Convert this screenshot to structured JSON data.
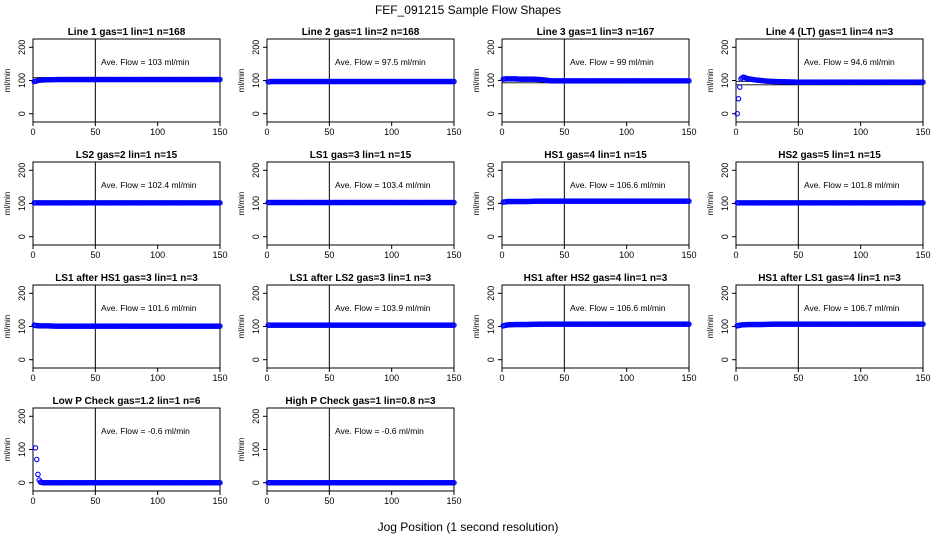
{
  "figure": {
    "title": "FEF_091215  Sample Flow Shapes",
    "xlabel": "Jog Position (1 second resolution)"
  },
  "chart_data": [
    {
      "type": "scatter",
      "title": "Line 1 gas=1 lin=1 n=168",
      "ylabel": "ml/min",
      "annotation": "Ave. Flow =  103  ml/min",
      "xlim": [
        0,
        150
      ],
      "ylim": [
        -25,
        225
      ],
      "xticks": [
        0,
        50,
        100,
        150
      ],
      "yticks": [
        0,
        100,
        200
      ],
      "vline_x": 50,
      "hlines": [
        97,
        109
      ],
      "series": [
        {
          "color": "#0000ff",
          "x": [
            1,
            2,
            3,
            4,
            5,
            10,
            20,
            30,
            40,
            50,
            60,
            70,
            80,
            90,
            100,
            110,
            120,
            130,
            140,
            150
          ],
          "y": [
            97,
            98,
            99,
            100,
            101,
            102,
            103,
            103,
            103,
            103,
            103,
            103,
            103,
            103,
            103,
            103,
            103,
            103,
            103,
            103
          ]
        }
      ]
    },
    {
      "type": "scatter",
      "title": "Line 2 gas=1 lin=2 n=168",
      "ylabel": "ml/min",
      "annotation": "Ave. Flow =  97.5  ml/min",
      "xlim": [
        0,
        150
      ],
      "ylim": [
        -25,
        225
      ],
      "xticks": [
        0,
        50,
        100,
        150
      ],
      "yticks": [
        0,
        100,
        200
      ],
      "vline_x": 50,
      "hlines": [],
      "series": [
        {
          "color": "#0000ff",
          "x": [
            1,
            2,
            3,
            5,
            10,
            20,
            30,
            40,
            50,
            60,
            70,
            80,
            90,
            100,
            110,
            120,
            130,
            140,
            150
          ],
          "y": [
            96,
            96,
            97,
            97,
            97,
            97,
            97,
            97,
            97,
            97,
            97,
            97,
            97,
            97,
            97,
            97,
            97,
            97,
            97
          ]
        }
      ]
    },
    {
      "type": "scatter",
      "title": "Line 3 gas=1 lin=3 n=167",
      "ylabel": "ml/min",
      "annotation": "Ave. Flow =  99  ml/min",
      "xlim": [
        0,
        150
      ],
      "ylim": [
        -25,
        225
      ],
      "xticks": [
        0,
        50,
        100,
        150
      ],
      "yticks": [
        0,
        100,
        200
      ],
      "vline_x": 50,
      "hlines": [
        93,
        105
      ],
      "series": [
        {
          "color": "#0000ff",
          "x": [
            1,
            3,
            5,
            10,
            15,
            20,
            25,
            30,
            40,
            50,
            60,
            70,
            80,
            90,
            100,
            110,
            120,
            130,
            140,
            150
          ],
          "y": [
            104,
            105,
            105,
            105,
            104,
            104,
            104,
            103,
            99,
            99,
            99,
            99,
            99,
            99,
            99,
            99,
            99,
            99,
            99,
            99
          ]
        }
      ]
    },
    {
      "type": "scatter",
      "title": "Line 4 (LT) gas=1 lin=4 n=3",
      "ylabel": "ml/min",
      "annotation": "Ave. Flow =  94.6  ml/min",
      "xlim": [
        0,
        150
      ],
      "ylim": [
        -25,
        225
      ],
      "xticks": [
        0,
        50,
        100,
        150
      ],
      "yticks": [
        0,
        100,
        200
      ],
      "vline_x": 50,
      "hlines": [
        87,
        97
      ],
      "series": [
        {
          "color": "#0000ff",
          "x": [
            1,
            2,
            3,
            4,
            5,
            6,
            7,
            8,
            10,
            12,
            15,
            20,
            25,
            30,
            40,
            50,
            60,
            70,
            80,
            90,
            100,
            110,
            120,
            130,
            140,
            150
          ],
          "y": [
            0,
            45,
            80,
            105,
            108,
            110,
            109,
            107,
            105,
            104,
            102,
            100,
            98,
            97,
            96,
            95,
            95,
            95,
            95,
            95,
            95,
            95,
            95,
            95,
            95,
            95
          ]
        }
      ]
    },
    {
      "type": "scatter",
      "title": "LS2 gas=2 lin=1 n=15",
      "ylabel": "ml/min",
      "annotation": "Ave. Flow =  102.4  ml/min",
      "xlim": [
        0,
        150
      ],
      "ylim": [
        -25,
        225
      ],
      "xticks": [
        0,
        50,
        100,
        150
      ],
      "yticks": [
        0,
        100,
        200
      ],
      "vline_x": 50,
      "hlines": [
        96,
        108
      ],
      "series": [
        {
          "color": "#0000ff",
          "x": [
            1,
            2,
            3,
            5,
            10,
            20,
            30,
            40,
            50,
            60,
            70,
            80,
            90,
            100,
            110,
            120,
            130,
            140,
            150
          ],
          "y": [
            102,
            102,
            102,
            102,
            102,
            102,
            102,
            102,
            102,
            102,
            102,
            102,
            102,
            102,
            102,
            102,
            102,
            102,
            102
          ]
        }
      ]
    },
    {
      "type": "scatter",
      "title": "LS1 gas=3 lin=1 n=15",
      "ylabel": "ml/min",
      "annotation": "Ave. Flow =  103.4  ml/min",
      "xlim": [
        0,
        150
      ],
      "ylim": [
        -25,
        225
      ],
      "xticks": [
        0,
        50,
        100,
        150
      ],
      "yticks": [
        0,
        100,
        200
      ],
      "vline_x": 50,
      "hlines": [],
      "series": [
        {
          "color": "#0000ff",
          "x": [
            1,
            2,
            3,
            5,
            10,
            20,
            30,
            40,
            50,
            60,
            70,
            80,
            90,
            100,
            110,
            120,
            130,
            140,
            150
          ],
          "y": [
            103,
            103,
            103,
            103,
            103,
            103,
            103,
            103,
            103,
            103,
            103,
            103,
            103,
            103,
            103,
            103,
            103,
            103,
            103
          ]
        }
      ]
    },
    {
      "type": "scatter",
      "title": "HS1 gas=4 lin=1 n=15",
      "ylabel": "ml/min",
      "annotation": "Ave. Flow =  106.6  ml/min",
      "xlim": [
        0,
        150
      ],
      "ylim": [
        -25,
        225
      ],
      "xticks": [
        0,
        50,
        100,
        150
      ],
      "yticks": [
        0,
        100,
        200
      ],
      "vline_x": 50,
      "hlines": [],
      "series": [
        {
          "color": "#0000ff",
          "x": [
            1,
            2,
            3,
            5,
            10,
            20,
            30,
            40,
            50,
            60,
            70,
            80,
            90,
            100,
            110,
            120,
            130,
            140,
            150
          ],
          "y": [
            104,
            105,
            105,
            106,
            106,
            106,
            107,
            107,
            107,
            107,
            107,
            107,
            107,
            107,
            107,
            107,
            107,
            107,
            107
          ]
        }
      ]
    },
    {
      "type": "scatter",
      "title": "HS2 gas=5 lin=1 n=15",
      "ylabel": "ml/min",
      "annotation": "Ave. Flow =  101.8  ml/min",
      "xlim": [
        0,
        150
      ],
      "ylim": [
        -25,
        225
      ],
      "xticks": [
        0,
        50,
        100,
        150
      ],
      "yticks": [
        0,
        100,
        200
      ],
      "vline_x": 50,
      "hlines": [],
      "series": [
        {
          "color": "#0000ff",
          "x": [
            1,
            2,
            3,
            5,
            10,
            20,
            30,
            40,
            50,
            60,
            70,
            80,
            90,
            100,
            110,
            120,
            130,
            140,
            150
          ],
          "y": [
            102,
            102,
            102,
            102,
            102,
            102,
            102,
            102,
            102,
            102,
            102,
            102,
            102,
            102,
            102,
            102,
            102,
            102,
            102
          ]
        }
      ]
    },
    {
      "type": "scatter",
      "title": "LS1 after HS1 gas=3 lin=1 n=3",
      "ylabel": "ml/min",
      "annotation": "Ave. Flow =  101.6  ml/min",
      "xlim": [
        0,
        150
      ],
      "ylim": [
        -25,
        225
      ],
      "xticks": [
        0,
        50,
        100,
        150
      ],
      "yticks": [
        0,
        100,
        200
      ],
      "vline_x": 50,
      "hlines": [],
      "series": [
        {
          "color": "#0000ff",
          "x": [
            1,
            2,
            3,
            5,
            10,
            20,
            30,
            40,
            50,
            60,
            70,
            80,
            90,
            100,
            110,
            120,
            130,
            140,
            150
          ],
          "y": [
            104,
            103,
            103,
            102,
            102,
            101,
            101,
            101,
            101,
            101,
            101,
            101,
            101,
            101,
            101,
            101,
            101,
            101,
            101
          ]
        }
      ]
    },
    {
      "type": "scatter",
      "title": "LS1 after LS2 gas=3 lin=1 n=3",
      "ylabel": "ml/min",
      "annotation": "Ave. Flow =  103.9  ml/min",
      "xlim": [
        0,
        150
      ],
      "ylim": [
        -25,
        225
      ],
      "xticks": [
        0,
        50,
        100,
        150
      ],
      "yticks": [
        0,
        100,
        200
      ],
      "vline_x": 50,
      "hlines": [],
      "series": [
        {
          "color": "#0000ff",
          "x": [
            1,
            2,
            3,
            5,
            10,
            20,
            30,
            40,
            50,
            60,
            70,
            80,
            90,
            100,
            110,
            120,
            130,
            140,
            150
          ],
          "y": [
            104,
            104,
            104,
            104,
            104,
            104,
            104,
            104,
            104,
            104,
            104,
            104,
            104,
            104,
            104,
            104,
            104,
            104,
            104
          ]
        }
      ]
    },
    {
      "type": "scatter",
      "title": "HS1 after HS2 gas=4 lin=1 n=3",
      "ylabel": "ml/min",
      "annotation": "Ave. Flow =  106.6  ml/min",
      "xlim": [
        0,
        150
      ],
      "ylim": [
        -25,
        225
      ],
      "xticks": [
        0,
        50,
        100,
        150
      ],
      "yticks": [
        0,
        100,
        200
      ],
      "vline_x": 50,
      "hlines": [],
      "series": [
        {
          "color": "#0000ff",
          "x": [
            1,
            2,
            3,
            5,
            10,
            20,
            30,
            40,
            50,
            60,
            70,
            80,
            90,
            100,
            110,
            120,
            130,
            140,
            150
          ],
          "y": [
            102,
            103,
            104,
            105,
            106,
            106,
            107,
            107,
            107,
            107,
            107,
            107,
            107,
            107,
            107,
            107,
            107,
            107,
            107
          ]
        }
      ]
    },
    {
      "type": "scatter",
      "title": "HS1 after LS1 gas=4 lin=1 n=3",
      "ylabel": "ml/min",
      "annotation": "Ave. Flow =  106.7  ml/min",
      "xlim": [
        0,
        150
      ],
      "ylim": [
        -25,
        225
      ],
      "xticks": [
        0,
        50,
        100,
        150
      ],
      "yticks": [
        0,
        100,
        200
      ],
      "vline_x": 50,
      "hlines": [],
      "series": [
        {
          "color": "#0000ff",
          "x": [
            1,
            2,
            3,
            5,
            10,
            20,
            30,
            40,
            50,
            60,
            70,
            80,
            90,
            100,
            110,
            120,
            130,
            140,
            150
          ],
          "y": [
            102,
            103,
            104,
            105,
            106,
            106,
            107,
            107,
            107,
            107,
            107,
            107,
            107,
            107,
            107,
            107,
            107,
            107,
            107
          ]
        }
      ]
    },
    {
      "type": "scatter",
      "title": "Low P Check gas=1.2 lin=1 n=6",
      "ylabel": "ml/min",
      "annotation": "Ave. Flow =  -0.6  ml/min",
      "xlim": [
        0,
        150
      ],
      "ylim": [
        -25,
        225
      ],
      "xticks": [
        0,
        50,
        100,
        150
      ],
      "yticks": [
        0,
        100,
        200
      ],
      "vline_x": 50,
      "hlines": [],
      "series": [
        {
          "color": "#0000ff",
          "x": [
            2,
            3,
            4,
            5,
            6,
            8,
            10,
            15,
            20,
            30,
            40,
            50,
            60,
            70,
            80,
            90,
            100,
            110,
            120,
            130,
            140,
            150
          ],
          "y": [
            105,
            70,
            25,
            8,
            2,
            0,
            0,
            0,
            0,
            0,
            0,
            0,
            0,
            0,
            0,
            0,
            0,
            0,
            0,
            0,
            0,
            0
          ]
        }
      ]
    },
    {
      "type": "scatter",
      "title": "High P Check gas=1 lin=0.8 n=3",
      "ylabel": "ml/min",
      "annotation": "Ave. Flow =  -0.6  ml/min",
      "xlim": [
        0,
        150
      ],
      "ylim": [
        -25,
        225
      ],
      "xticks": [
        0,
        50,
        100,
        150
      ],
      "yticks": [
        0,
        100,
        200
      ],
      "vline_x": 50,
      "hlines": [],
      "series": [
        {
          "color": "#0000ff",
          "x": [
            1,
            2,
            3,
            5,
            10,
            20,
            30,
            40,
            50,
            60,
            70,
            80,
            90,
            100,
            110,
            120,
            130,
            140,
            150
          ],
          "y": [
            0,
            0,
            0,
            0,
            0,
            0,
            0,
            0,
            0,
            0,
            0,
            0,
            0,
            0,
            0,
            0,
            0,
            0,
            0
          ]
        }
      ]
    }
  ]
}
